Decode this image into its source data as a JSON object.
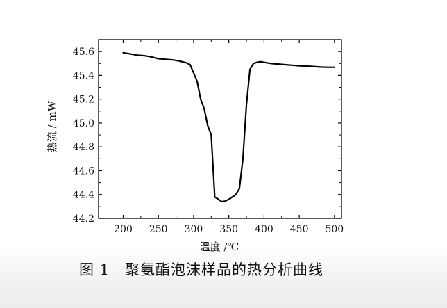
{
  "caption": "图 1　聚氨酯泡沫样品的热分析曲线",
  "chart_data": {
    "type": "line",
    "xlabel": "温度 /℃",
    "ylabel": "热流 / mW",
    "xlim": [
      165,
      510
    ],
    "ylim": [
      44.2,
      45.7
    ],
    "xticks": [
      200,
      250,
      300,
      350,
      400,
      450,
      500
    ],
    "yticks": [
      44.2,
      44.4,
      44.6,
      44.8,
      45.0,
      45.2,
      45.4,
      45.6
    ],
    "xtick_labels": [
      "200",
      "250",
      "300",
      "350",
      "400",
      "450",
      "500"
    ],
    "ytick_labels": [
      "44.2",
      "44.4",
      "44.6",
      "44.8",
      "45.0",
      "45.2",
      "45.4",
      "45.6"
    ],
    "grid": false,
    "line_color": "#000000",
    "series": [
      {
        "x": [
          200,
          210,
          220,
          230,
          240,
          250,
          260,
          270,
          280,
          290,
          295,
          300,
          305,
          310,
          315,
          320,
          325,
          330,
          335,
          340,
          345,
          350,
          355,
          360,
          365,
          370,
          375,
          380,
          385,
          390,
          395,
          400,
          410,
          420,
          430,
          440,
          450,
          460,
          470,
          480,
          490,
          500
        ],
        "y": [
          45.59,
          45.58,
          45.57,
          45.565,
          45.555,
          45.54,
          45.535,
          45.53,
          45.52,
          45.505,
          45.49,
          45.42,
          45.35,
          45.2,
          45.12,
          44.98,
          44.9,
          44.38,
          44.36,
          44.34,
          44.345,
          44.36,
          44.38,
          44.4,
          44.45,
          44.7,
          45.15,
          45.45,
          45.5,
          45.51,
          45.515,
          45.51,
          45.5,
          45.495,
          45.49,
          45.485,
          45.48,
          45.478,
          45.475,
          45.47,
          45.468,
          45.468
        ]
      }
    ]
  }
}
